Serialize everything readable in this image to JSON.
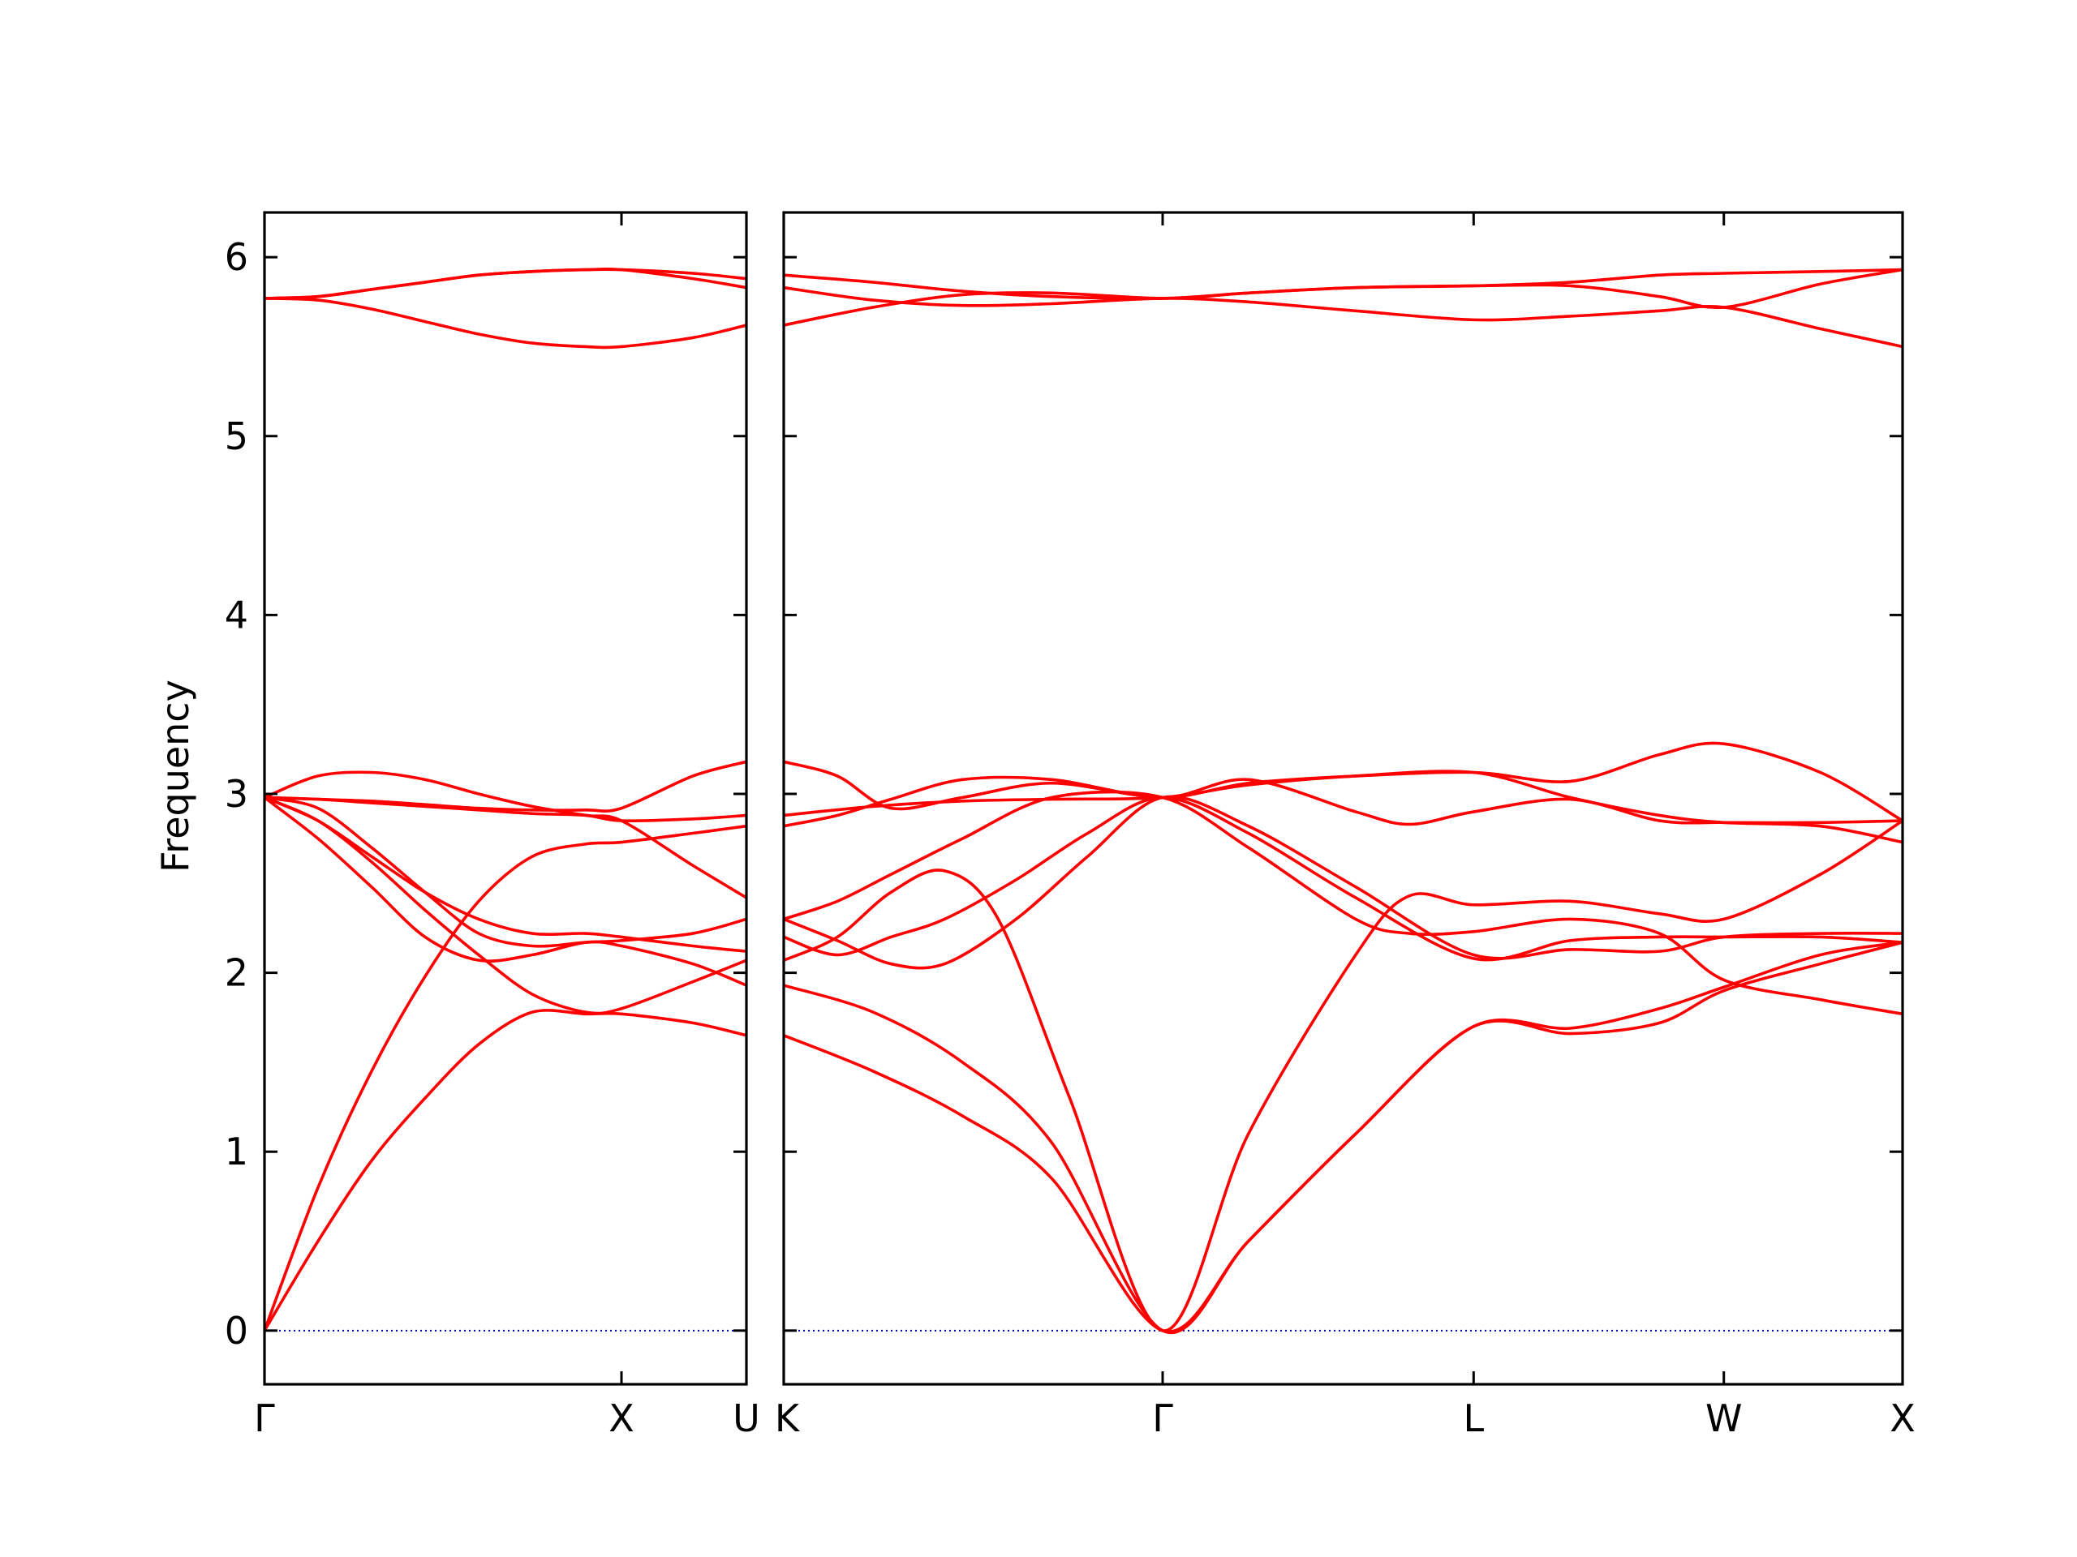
{
  "chart_data": {
    "type": "line",
    "ylabel": "Frequency",
    "ylim": [
      -0.3,
      6.25
    ],
    "yticks": [
      "0",
      "1",
      "2",
      "3",
      "4",
      "5",
      "6"
    ],
    "colors": {
      "band": "#ff0000",
      "zero_line": "#0000aa"
    },
    "grid": false,
    "panels": [
      {
        "xlim": [
          0,
          1.35
        ],
        "xticks": [
          {
            "x": 0,
            "label": "Γ"
          },
          {
            "x": 1.0,
            "label": "X"
          },
          {
            "x": 1.35,
            "label": "U"
          }
        ],
        "series": [
          {
            "x": [
              0,
              0.15,
              0.3,
              0.45,
              0.6,
              0.75,
              0.9,
              1.0,
              1.2,
              1.35
            ],
            "values": [
              0,
              0.5,
              0.95,
              1.3,
              1.6,
              1.78,
              1.77,
              1.77,
              1.72,
              1.65
            ]
          },
          {
            "x": [
              0,
              0.15,
              0.3,
              0.45,
              0.6,
              0.75,
              0.9,
              1.0,
              1.2,
              1.35
            ],
            "values": [
              0,
              0.8,
              1.45,
              1.98,
              2.4,
              2.65,
              2.72,
              2.73,
              2.78,
              2.82
            ]
          },
          {
            "x": [
              0,
              0.15,
              0.3,
              0.45,
              0.6,
              0.75,
              0.9,
              1.0,
              1.2,
              1.35
            ],
            "values": [
              2.98,
              2.75,
              2.48,
              2.2,
              2.07,
              2.1,
              2.17,
              2.15,
              2.05,
              1.93
            ]
          },
          {
            "x": [
              0,
              0.15,
              0.3,
              0.45,
              0.6,
              0.75,
              0.9,
              1.0,
              1.2,
              1.35
            ],
            "values": [
              2.98,
              2.85,
              2.65,
              2.45,
              2.3,
              2.22,
              2.22,
              2.2,
              2.15,
              2.12
            ]
          },
          {
            "x": [
              0,
              0.15,
              0.3,
              0.45,
              0.6,
              0.75,
              0.9,
              1.0,
              1.2,
              1.35
            ],
            "values": [
              2.98,
              2.97,
              2.95,
              2.93,
              2.91,
              2.89,
              2.88,
              2.85,
              2.86,
              2.88
            ]
          },
          {
            "x": [
              0,
              0.15,
              0.3,
              0.45,
              0.6,
              0.75,
              0.9,
              1.0,
              1.2,
              1.35
            ],
            "values": [
              2.98,
              3.1,
              3.12,
              3.08,
              3.0,
              2.93,
              2.88,
              2.85,
              2.6,
              2.42
            ]
          },
          {
            "x": [
              0,
              0.15,
              0.3,
              0.45,
              0.6,
              0.75,
              0.9,
              1.0,
              1.2,
              1.35
            ],
            "values": [
              2.98,
              2.97,
              2.96,
              2.94,
              2.92,
              2.91,
              2.91,
              2.92,
              3.1,
              3.18
            ]
          },
          {
            "x": [
              0,
              0.15,
              0.3,
              0.45,
              0.6,
              0.75,
              0.9,
              1.0,
              1.2,
              1.35
            ],
            "values": [
              2.98,
              2.92,
              2.7,
              2.45,
              2.22,
              2.15,
              2.17,
              2.18,
              2.22,
              2.3
            ]
          },
          {
            "x": [
              0,
              0.15,
              0.3,
              0.45,
              0.6,
              0.75,
              0.9,
              1.0,
              1.2,
              1.35
            ],
            "values": [
              2.98,
              2.85,
              2.62,
              2.35,
              2.1,
              1.88,
              1.78,
              1.8,
              1.95,
              2.07
            ]
          },
          {
            "x": [
              0,
              0.15,
              0.3,
              0.45,
              0.6,
              0.75,
              0.9,
              1.0,
              1.2,
              1.35
            ],
            "values": [
              5.77,
              5.78,
              5.82,
              5.86,
              5.9,
              5.92,
              5.93,
              5.93,
              5.91,
              5.88
            ]
          },
          {
            "x": [
              0,
              0.15,
              0.3,
              0.45,
              0.6,
              0.75,
              0.9,
              1.0,
              1.2,
              1.35
            ],
            "values": [
              5.77,
              5.76,
              5.71,
              5.64,
              5.57,
              5.52,
              5.5,
              5.5,
              5.55,
              5.62
            ]
          },
          {
            "x": [
              0,
              0.15,
              0.3,
              0.45,
              0.6,
              0.75,
              0.9,
              1.0,
              1.2,
              1.35
            ],
            "values": [
              5.77,
              5.78,
              5.82,
              5.86,
              5.9,
              5.92,
              5.93,
              5.93,
              5.88,
              5.83
            ]
          }
        ]
      },
      {
        "xlim": [
          0,
          3.13
        ],
        "xticks": [
          {
            "x": 0,
            "label": "K"
          },
          {
            "x": 1.06,
            "label": "Γ"
          },
          {
            "x": 1.93,
            "label": "L"
          },
          {
            "x": 2.63,
            "label": "W"
          },
          {
            "x": 3.13,
            "label": "X"
          }
        ],
        "series": [
          {
            "x": [
              0,
              0.25,
              0.5,
              0.75,
              1.06,
              1.3,
              1.6,
              1.93,
              2.2,
              2.45,
              2.63,
              2.9,
              3.13
            ],
            "values": [
              1.65,
              1.45,
              1.2,
              0.85,
              0,
              0.5,
              1.1,
              1.7,
              1.66,
              1.72,
              1.9,
              2.05,
              2.17
            ]
          },
          {
            "x": [
              0,
              0.25,
              0.5,
              0.75,
              1.06,
              1.3,
              1.6,
              1.93,
              2.2,
              2.45,
              2.63,
              2.9,
              3.13
            ],
            "values": [
              1.93,
              1.78,
              1.5,
              1.05,
              0,
              0.5,
              1.1,
              1.7,
              1.69,
              1.8,
              1.92,
              2.1,
              2.17
            ]
          },
          {
            "x": [
              0,
              0.15,
              0.3,
              0.45,
              0.6,
              0.8,
              1.06,
              1.3,
              1.6,
              1.75,
              1.93,
              2.2,
              2.45,
              2.63,
              2.9,
              3.13
            ],
            "values": [
              2.07,
              2.2,
              2.45,
              2.57,
              2.3,
              1.3,
              0,
              1.1,
              2.1,
              2.43,
              2.38,
              2.4,
              2.33,
              2.3,
              2.55,
              2.85
            ]
          },
          {
            "x": [
              0,
              0.15,
              0.3,
              0.45,
              0.65,
              0.85,
              1.06,
              1.3,
              1.6,
              1.93,
              2.2,
              2.45,
              2.63,
              2.9,
              3.13
            ],
            "values": [
              2.3,
              2.18,
              2.05,
              2.05,
              2.3,
              2.65,
              2.98,
              2.82,
              2.48,
              2.1,
              2.13,
              2.12,
              2.2,
              2.22,
              2.22
            ]
          },
          {
            "x": [
              0,
              0.15,
              0.3,
              0.45,
              0.65,
              0.85,
              1.06,
              1.3,
              1.6,
              1.93,
              2.2,
              2.45,
              2.63,
              2.9,
              3.13
            ],
            "values": [
              2.2,
              2.1,
              2.2,
              2.3,
              2.52,
              2.78,
              2.98,
              2.78,
              2.42,
              2.08,
              2.18,
              2.2,
              2.2,
              2.2,
              2.17
            ]
          },
          {
            "x": [
              0,
              0.15,
              0.3,
              0.5,
              0.75,
              1.06,
              1.3,
              1.6,
              1.75,
              1.93,
              2.2,
              2.45,
              2.63,
              2.9,
              3.13
            ],
            "values": [
              2.3,
              2.4,
              2.55,
              2.75,
              2.98,
              2.98,
              2.7,
              2.3,
              2.22,
              2.23,
              2.3,
              2.22,
              1.96,
              1.85,
              1.77
            ]
          },
          {
            "x": [
              0,
              0.25,
              0.5,
              0.75,
              1.06,
              1.3,
              1.6,
              1.93,
              2.2,
              2.45,
              2.63,
              2.9,
              3.13
            ],
            "values": [
              2.88,
              2.93,
              2.96,
              2.97,
              2.98,
              3.05,
              3.1,
              3.12,
              2.98,
              2.88,
              2.84,
              2.82,
              2.73
            ]
          },
          {
            "x": [
              0,
              0.15,
              0.3,
              0.5,
              0.75,
              1.06,
              1.3,
              1.6,
              1.75,
              1.93,
              2.2,
              2.45,
              2.63,
              2.9,
              3.13
            ],
            "values": [
              2.82,
              2.88,
              2.97,
              3.08,
              3.08,
              2.98,
              3.08,
              2.9,
              2.83,
              2.9,
              2.97,
              2.85,
              2.84,
              2.84,
              2.85
            ]
          },
          {
            "x": [
              0,
              0.15,
              0.3,
              0.5,
              0.75,
              1.06,
              1.3,
              1.6,
              1.93,
              2.2,
              2.45,
              2.63,
              2.9,
              3.13
            ],
            "values": [
              3.18,
              3.1,
              2.92,
              2.98,
              3.06,
              2.98,
              3.06,
              3.1,
              3.12,
              3.07,
              3.22,
              3.28,
              3.12,
              2.85
            ]
          },
          {
            "x": [
              0,
              0.25,
              0.5,
              0.75,
              1.06,
              1.3,
              1.6,
              1.93,
              2.2,
              2.45,
              2.63,
              2.9,
              3.13
            ],
            "values": [
              5.62,
              5.72,
              5.79,
              5.8,
              5.77,
              5.8,
              5.83,
              5.84,
              5.84,
              5.78,
              5.72,
              5.85,
              5.93
            ]
          },
          {
            "x": [
              0,
              0.25,
              0.5,
              0.75,
              1.06,
              1.3,
              1.6,
              1.93,
              2.2,
              2.45,
              2.63,
              2.9,
              3.13
            ],
            "values": [
              5.83,
              5.76,
              5.73,
              5.74,
              5.77,
              5.75,
              5.7,
              5.65,
              5.67,
              5.7,
              5.72,
              5.6,
              5.5
            ]
          },
          {
            "x": [
              0,
              0.25,
              0.5,
              0.75,
              1.06,
              1.3,
              1.6,
              1.93,
              2.2,
              2.45,
              2.63,
              2.9,
              3.13
            ],
            "values": [
              5.9,
              5.86,
              5.81,
              5.78,
              5.77,
              5.8,
              5.83,
              5.84,
              5.86,
              5.9,
              5.91,
              5.92,
              5.93
            ]
          }
        ]
      }
    ]
  }
}
